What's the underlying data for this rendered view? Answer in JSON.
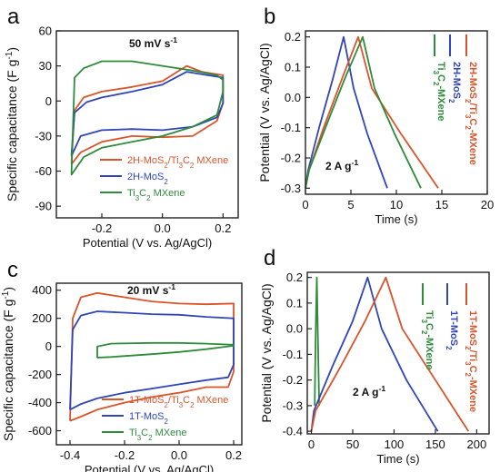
{
  "colors": {
    "red": "#d9542b",
    "blue": "#2f45b8",
    "green": "#2e8b3a",
    "axis": "#222222"
  },
  "chart_data": [
    {
      "panel": "a",
      "type": "line",
      "annotation": "50 mV s",
      "annotation_sup": "-1",
      "xlabel": "Potential (V vs. Ag/AgCl)",
      "ylabel": "Specific capacitance (F g",
      "ylabel_sup": "-1",
      "ylabel_end": ")",
      "xlim": [
        -0.35,
        0.25
      ],
      "ylim": [
        -100,
        60
      ],
      "xticks": [
        -0.2,
        0.0,
        0.2
      ],
      "xtick_labels": [
        "-0.2",
        "0.0",
        "0.2"
      ],
      "yticks": [
        -90,
        -60,
        -30,
        0,
        30,
        60
      ],
      "ytick_labels": [
        "-90",
        "-60",
        "-30",
        "0",
        "30",
        "60"
      ],
      "legend": [
        {
          "color": "red",
          "parts": [
            [
              "2H-MoS",
              ""
            ],
            [
              "2",
              "sub"
            ],
            [
              "/Ti",
              ""
            ],
            [
              "3",
              "sub"
            ],
            [
              "C",
              ""
            ],
            [
              "2",
              "sub"
            ],
            [
              " MXene",
              ""
            ]
          ]
        },
        {
          "color": "blue",
          "parts": [
            [
              "2H-MoS",
              ""
            ],
            [
              "2",
              "sub"
            ]
          ]
        },
        {
          "color": "green",
          "parts": [
            [
              "Ti",
              ""
            ],
            [
              "3",
              "sub"
            ],
            [
              "C",
              ""
            ],
            [
              "2",
              "sub"
            ],
            [
              " MXene",
              ""
            ]
          ]
        }
      ],
      "series": [
        {
          "color": "red",
          "x": [
            -0.3,
            -0.29,
            -0.26,
            -0.2,
            -0.1,
            0.0,
            0.08,
            0.13,
            0.2,
            0.2,
            0.18,
            0.1,
            0.0,
            -0.1,
            -0.2,
            -0.27,
            -0.3,
            -0.3
          ],
          "y": [
            -52,
            -8,
            3,
            8,
            12,
            17,
            30,
            25,
            22,
            -2,
            -17,
            -30,
            -31,
            -30,
            -35,
            -44,
            -54,
            -52
          ]
        },
        {
          "color": "blue",
          "x": [
            -0.3,
            -0.29,
            -0.25,
            -0.2,
            -0.1,
            0.0,
            0.08,
            0.15,
            0.2,
            0.2,
            0.18,
            0.1,
            0.0,
            -0.1,
            -0.2,
            -0.27,
            -0.3,
            -0.3
          ],
          "y": [
            -45,
            -10,
            -1,
            3,
            8,
            14,
            25,
            22,
            20,
            -2,
            -14,
            -22,
            -25,
            -24,
            -25,
            -30,
            -47,
            -45
          ]
        },
        {
          "color": "green",
          "x": [
            -0.3,
            -0.29,
            -0.26,
            -0.2,
            -0.1,
            0.0,
            0.1,
            0.18,
            0.2,
            0.2,
            0.18,
            0.1,
            0.0,
            -0.1,
            -0.2,
            -0.26,
            -0.3,
            -0.3
          ],
          "y": [
            -60,
            20,
            28,
            34,
            34,
            30,
            26,
            22,
            18,
            8,
            -12,
            -22,
            -30,
            -35,
            -40,
            -48,
            -63,
            -60
          ]
        }
      ]
    },
    {
      "panel": "b",
      "type": "line",
      "annotation": "2 A g",
      "annotation_sup": "-1",
      "xlabel": "Time (s)",
      "ylabel": "Potential (V vs. Ag/AgCl)",
      "xlim": [
        0,
        20
      ],
      "ylim": [
        -0.32,
        0.22
      ],
      "xticks": [
        0,
        5,
        10,
        15,
        20
      ],
      "xtick_labels": [
        "0",
        "5",
        "10",
        "15",
        "20"
      ],
      "yticks": [
        -0.3,
        -0.2,
        -0.1,
        0.0,
        0.1,
        0.2
      ],
      "ytick_labels": [
        "-0.3",
        "-0.2",
        "-0.1",
        "0.0",
        "0.1",
        "0.2"
      ],
      "legend": [
        {
          "color": "red",
          "parts": [
            [
              "2H-MoS",
              ""
            ],
            [
              "2",
              "sub"
            ],
            [
              "/Ti",
              ""
            ],
            [
              "3",
              "sub"
            ],
            [
              "C",
              ""
            ],
            [
              "2",
              "sub"
            ],
            [
              "-MXene",
              ""
            ]
          ]
        },
        {
          "color": "blue",
          "parts": [
            [
              "2H-MoS",
              ""
            ],
            [
              "2",
              "sub"
            ]
          ]
        },
        {
          "color": "green",
          "parts": [
            [
              "Ti",
              ""
            ],
            [
              "3",
              "sub"
            ],
            [
              "C",
              ""
            ],
            [
              "2",
              "sub"
            ],
            [
              "-MXene",
              ""
            ]
          ]
        }
      ],
      "series": [
        {
          "color": "blue",
          "x": [
            0,
            0.3,
            1.5,
            3.0,
            4.2,
            5.3,
            6.8,
            9.0
          ],
          "y": [
            -0.3,
            -0.24,
            -0.1,
            0.06,
            0.2,
            0.03,
            -0.12,
            -0.3
          ]
        },
        {
          "color": "red",
          "x": [
            0,
            0.4,
            2.0,
            4.0,
            5.8,
            7.3,
            10.5,
            14.6
          ],
          "y": [
            -0.3,
            -0.24,
            -0.1,
            0.06,
            0.2,
            0.03,
            -0.12,
            -0.3
          ]
        },
        {
          "color": "green",
          "x": [
            0,
            0.4,
            2.2,
            4.3,
            6.3,
            7.6,
            9.8,
            12.7
          ],
          "y": [
            -0.3,
            -0.24,
            -0.1,
            0.06,
            0.2,
            0.03,
            -0.12,
            -0.3
          ]
        }
      ]
    },
    {
      "panel": "c",
      "type": "line",
      "annotation": "20 mV s",
      "annotation_sup": "-1",
      "xlabel": "Potential (V vs. Ag/AgCl)",
      "ylabel": "Specific capacitance (F g",
      "ylabel_sup": "-1",
      "ylabel_end": ")",
      "xlim": [
        -0.45,
        0.23
      ],
      "ylim": [
        -700,
        450
      ],
      "xticks": [
        -0.4,
        -0.2,
        0.0,
        0.2
      ],
      "xtick_labels": [
        "-0.4",
        "-0.2",
        "0.0",
        "0.2"
      ],
      "yticks": [
        -600,
        -400,
        -200,
        0,
        200,
        400
      ],
      "ytick_labels": [
        "-600",
        "-400",
        "-200",
        "0",
        "200",
        "400"
      ],
      "legend": [
        {
          "color": "red",
          "parts": [
            [
              "1T-MoS",
              ""
            ],
            [
              "2",
              "sub"
            ],
            [
              "/Ti",
              ""
            ],
            [
              "3",
              "sub"
            ],
            [
              "C",
              ""
            ],
            [
              "2",
              "sub"
            ],
            [
              " MXene",
              ""
            ]
          ]
        },
        {
          "color": "blue",
          "parts": [
            [
              "1T-MoS",
              ""
            ],
            [
              "2",
              "sub"
            ]
          ]
        },
        {
          "color": "green",
          "parts": [
            [
              "Ti",
              ""
            ],
            [
              "3",
              "sub"
            ],
            [
              "C",
              ""
            ],
            [
              "2",
              "sub"
            ],
            [
              " MXene",
              ""
            ]
          ]
        }
      ],
      "series": [
        {
          "color": "red",
          "x": [
            -0.4,
            -0.39,
            -0.36,
            -0.3,
            -0.2,
            -0.1,
            0.0,
            0.1,
            0.2,
            0.2,
            0.18,
            0.1,
            0.0,
            -0.1,
            -0.2,
            -0.3,
            -0.36,
            -0.4
          ],
          "y": [
            -530,
            200,
            350,
            380,
            350,
            320,
            305,
            300,
            305,
            -180,
            -290,
            -290,
            -330,
            -360,
            -400,
            -450,
            -500,
            -530
          ]
        },
        {
          "color": "blue",
          "x": [
            -0.4,
            -0.39,
            -0.36,
            -0.3,
            -0.2,
            -0.1,
            0.0,
            0.1,
            0.2,
            0.2,
            0.18,
            0.1,
            0.0,
            -0.1,
            -0.2,
            -0.3,
            -0.36,
            -0.4
          ],
          "y": [
            -450,
            120,
            220,
            250,
            240,
            230,
            225,
            210,
            200,
            -130,
            -220,
            -240,
            -270,
            -300,
            -330,
            -370,
            -410,
            -450
          ]
        },
        {
          "color": "green",
          "x": [
            -0.3,
            -0.3,
            -0.25,
            -0.1,
            0.0,
            0.1,
            0.2,
            0.2,
            0.1,
            0.0,
            -0.1,
            -0.25,
            -0.3
          ],
          "y": [
            -80,
            0,
            20,
            25,
            25,
            20,
            12,
            5,
            -20,
            -40,
            -55,
            -75,
            -80
          ]
        }
      ]
    },
    {
      "panel": "d",
      "type": "line",
      "annotation": "2 A g",
      "annotation_sup": "-1",
      "xlabel": "Time (s)",
      "ylabel": "Potential (V vs. Ag/AgCl)",
      "xlim": [
        -5,
        215
      ],
      "ylim": [
        -0.41,
        0.22
      ],
      "xticks": [
        0,
        50,
        100,
        150,
        200
      ],
      "xtick_labels": [
        "0",
        "50",
        "100",
        "150",
        "200"
      ],
      "yticks": [
        -0.4,
        -0.3,
        -0.2,
        -0.1,
        0.0,
        0.1,
        0.2
      ],
      "ytick_labels": [
        "-0.4",
        "-0.3",
        "-0.2",
        "-0.1",
        "0.0",
        "0.1",
        "0.2"
      ],
      "legend": [
        {
          "color": "red",
          "parts": [
            [
              "1T-MoS",
              ""
            ],
            [
              "2",
              "sub"
            ],
            [
              "/Ti",
              ""
            ],
            [
              "3",
              "sub"
            ],
            [
              "C",
              ""
            ],
            [
              "2",
              "sub"
            ],
            [
              "-MXene",
              ""
            ]
          ]
        },
        {
          "color": "blue",
          "parts": [
            [
              "1T-MoS",
              ""
            ],
            [
              "2",
              "sub"
            ]
          ]
        },
        {
          "color": "green",
          "parts": [
            [
              "Ti",
              ""
            ],
            [
              "3",
              "sub"
            ],
            [
              "C",
              ""
            ],
            [
              "2",
              "sub"
            ],
            [
              "-MXene",
              ""
            ]
          ]
        }
      ],
      "series": [
        {
          "color": "green",
          "x": [
            4,
            4.6,
            5.6,
            6.6,
            7.5,
            8.5,
            9.4
          ],
          "y": [
            -0.3,
            -0.15,
            0.05,
            0.2,
            0.02,
            -0.15,
            -0.3
          ]
        },
        {
          "color": "blue",
          "x": [
            0,
            3,
            25,
            50,
            68,
            85,
            115,
            153
          ],
          "y": [
            -0.4,
            -0.32,
            -0.15,
            0.03,
            0.2,
            0.0,
            -0.2,
            -0.4
          ]
        },
        {
          "color": "red",
          "x": [
            0,
            5,
            35,
            65,
            90,
            110,
            150,
            190
          ],
          "y": [
            -0.4,
            -0.32,
            -0.15,
            0.03,
            0.2,
            0.0,
            -0.2,
            -0.4
          ]
        }
      ]
    }
  ]
}
